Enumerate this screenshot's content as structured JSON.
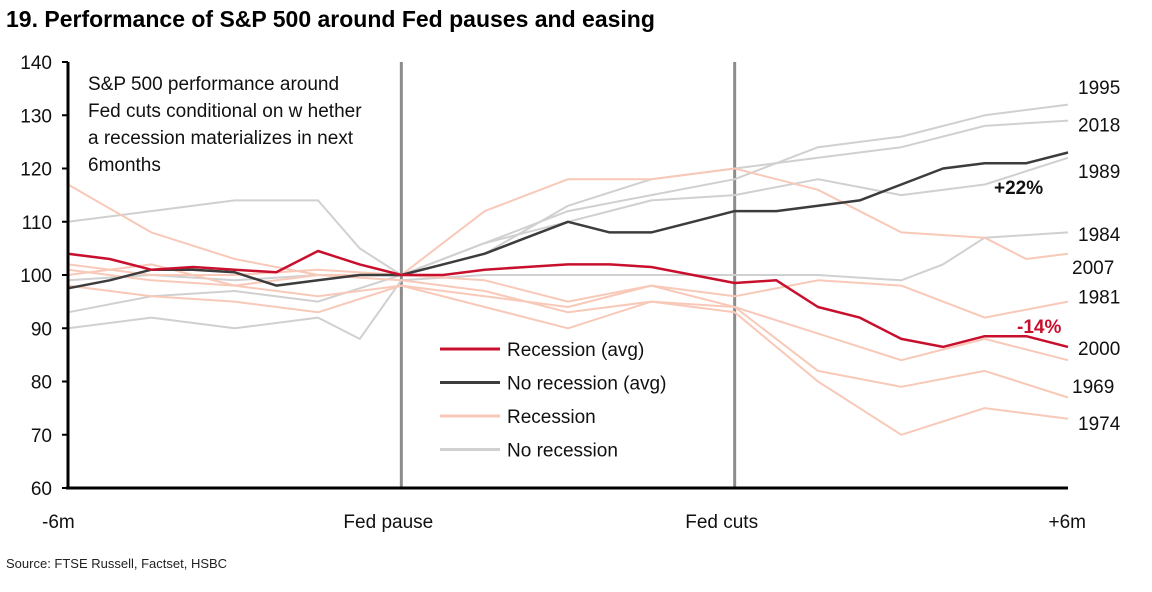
{
  "title": "19. Performance of S&P 500 around Fed pauses and easing",
  "source": "Source: FTSE Russell, Factset, HSBC",
  "chart_data": {
    "type": "line",
    "title": "19. Performance of S&P 500 around Fed pauses and easing",
    "annotation_text": [
      "S&P 500 performance around",
      "Fed cuts conditional on w hether",
      "a recession materializes in next",
      "6months"
    ],
    "xlim": [
      -6,
      6
    ],
    "x_ticks": [
      {
        "x": -6,
        "label": "-6m"
      },
      {
        "x": -2,
        "label": "Fed pause"
      },
      {
        "x": 2,
        "label": "Fed cuts"
      },
      {
        "x": 6,
        "label": "+6m"
      }
    ],
    "vertical_markers": [
      -2,
      2
    ],
    "ylim": [
      60,
      140
    ],
    "y_ticks": [
      60,
      70,
      80,
      90,
      100,
      110,
      120,
      130,
      140
    ],
    "grid": false,
    "legend_position": "center",
    "legend": [
      {
        "name": "Recession (avg)",
        "color": "#c8102e"
      },
      {
        "name": "No recession (avg)",
        "color": "#3c3c3c"
      },
      {
        "name": "Recession",
        "color": "#f8c9b8"
      },
      {
        "name": "No recession",
        "color": "#d0d0d0"
      }
    ],
    "series": [
      {
        "name": "1995",
        "group": "No recession",
        "color": "#d0d0d0",
        "x": [
          -6,
          -5,
          -4,
          -3,
          -2,
          -1,
          0,
          1,
          2,
          3,
          4,
          5,
          6
        ],
        "y": [
          93,
          96,
          97,
          95,
          100,
          106,
          112,
          115,
          118,
          124,
          126,
          130,
          132
        ]
      },
      {
        "name": "2018",
        "group": "No recession",
        "color": "#d0d0d0",
        "x": [
          -6,
          -5,
          -4,
          -3,
          -2.5,
          -2,
          -1,
          0,
          1,
          2,
          3,
          4,
          5,
          6
        ],
        "y": [
          110,
          112,
          114,
          114,
          105,
          100,
          104,
          113,
          118,
          120,
          122,
          124,
          128,
          129
        ]
      },
      {
        "name": "1989",
        "group": "No recession",
        "color": "#d0d0d0",
        "x": [
          -6,
          -5,
          -4,
          -3,
          -2,
          -1,
          0,
          1,
          2,
          3,
          4,
          5,
          6
        ],
        "y": [
          99,
          100,
          99,
          100,
          100,
          106,
          110,
          114,
          115,
          118,
          115,
          117,
          122
        ]
      },
      {
        "name": "1984",
        "group": "No recession",
        "color": "#d0d0d0",
        "x": [
          -6,
          -5,
          -4,
          -3,
          -2.5,
          -2,
          -1,
          0,
          1,
          2,
          3,
          4,
          4.5,
          5,
          6
        ],
        "y": [
          90,
          92,
          90,
          92,
          88,
          99,
          100,
          100,
          100,
          100,
          100,
          99,
          102,
          107,
          108
        ]
      },
      {
        "name": "2007",
        "group": "Recession",
        "color": "#f8c9b8",
        "x": [
          -6,
          -5,
          -4,
          -3,
          -2,
          -1,
          0,
          1,
          2,
          3,
          4,
          5,
          5.5,
          6
        ],
        "y": [
          117,
          108,
          103,
          100,
          100,
          112,
          118,
          118,
          120,
          116,
          108,
          107,
          103,
          104
        ]
      },
      {
        "name": "1981",
        "group": "Recession",
        "color": "#f8c9b8",
        "x": [
          -6,
          -5,
          -4,
          -3,
          -2,
          -1,
          0,
          1,
          2,
          3,
          4,
          5,
          6
        ],
        "y": [
          100,
          102,
          98,
          96,
          98,
          96,
          94,
          98,
          96,
          99,
          98,
          92,
          95
        ]
      },
      {
        "name": "2000",
        "group": "Recession",
        "color": "#f8c9b8",
        "x": [
          -6,
          -5,
          -4,
          -3,
          -2,
          -1,
          0,
          1,
          2,
          3,
          4,
          5,
          6
        ],
        "y": [
          102,
          100,
          100,
          101,
          100,
          99,
          95,
          98,
          94,
          89,
          84,
          88,
          84
        ]
      },
      {
        "name": "1969",
        "group": "Recession",
        "color": "#f8c9b8",
        "x": [
          -6,
          -5,
          -4,
          -3,
          -2,
          -1,
          0,
          1,
          2,
          3,
          4,
          5,
          6
        ],
        "y": [
          101,
          99,
          98,
          100,
          99,
          97,
          93,
          95,
          94,
          82,
          79,
          82,
          77
        ]
      },
      {
        "name": "1974",
        "group": "Recession",
        "color": "#f8c9b8",
        "x": [
          -6,
          -5,
          -4,
          -3,
          -2,
          -1,
          0,
          1,
          2,
          3,
          4,
          5,
          6
        ],
        "y": [
          98,
          96,
          95,
          93,
          98,
          94,
          90,
          95,
          93,
          80,
          70,
          75,
          73
        ]
      },
      {
        "name": "No recession (avg)",
        "color": "#3c3c3c",
        "x": [
          -6,
          -5.5,
          -5,
          -4.5,
          -4,
          -3.5,
          -3,
          -2.5,
          -2,
          -1.5,
          -1,
          -0.5,
          0,
          0.5,
          1,
          1.5,
          2,
          2.5,
          3,
          3.5,
          4,
          4.5,
          5,
          5.5,
          6
        ],
        "y": [
          97.5,
          99,
          101,
          101,
          100.5,
          98,
          99,
          100,
          100,
          102,
          104,
          107,
          110,
          108,
          108,
          110,
          112,
          112,
          113,
          114,
          117,
          120,
          121,
          121,
          123
        ],
        "end_label": "+22%"
      },
      {
        "name": "Recession (avg)",
        "color": "#c8102e",
        "x": [
          -6,
          -5.5,
          -5,
          -4.5,
          -4,
          -3.5,
          -3,
          -2.5,
          -2,
          -1.5,
          -1,
          -0.5,
          0,
          0.5,
          1,
          1.5,
          2,
          2.5,
          3,
          3.5,
          4,
          4.5,
          5,
          5.5,
          6
        ],
        "y": [
          104,
          103,
          101,
          101.5,
          101,
          100.5,
          104.5,
          102,
          100,
          100,
          101,
          101.5,
          102,
          102,
          101.5,
          100,
          98.5,
          99,
          94,
          92,
          88,
          86.5,
          88.5,
          88.5,
          86.5
        ],
        "end_label": "-14%"
      }
    ]
  }
}
